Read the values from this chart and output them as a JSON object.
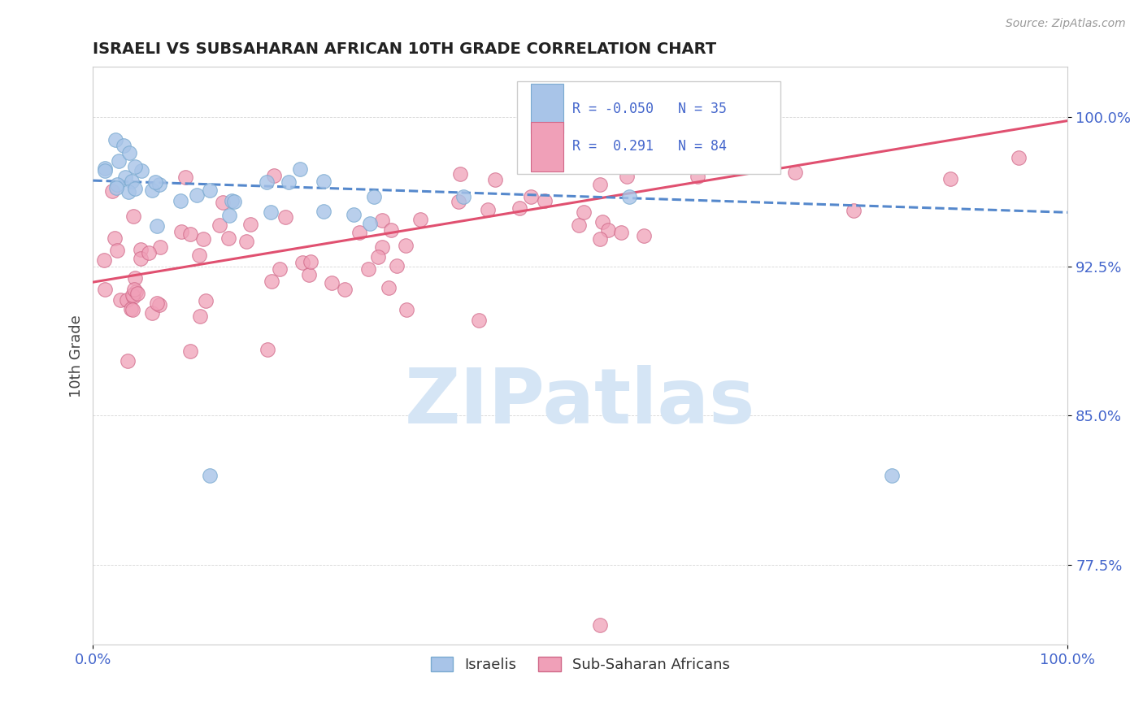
{
  "title": "ISRAELI VS SUBSAHARAN AFRICAN 10TH GRADE CORRELATION CHART",
  "source": "Source: ZipAtlas.com",
  "ylabel": "10th Grade",
  "ytick_labels": [
    "77.5%",
    "85.0%",
    "92.5%",
    "100.0%"
  ],
  "ytick_values": [
    0.775,
    0.85,
    0.925,
    1.0
  ],
  "xlim": [
    0.0,
    1.0
  ],
  "ylim": [
    0.735,
    1.025
  ],
  "color_israeli": "#a8c4e8",
  "color_israeli_edge": "#7aaad0",
  "color_subsaharan": "#f0a0b8",
  "color_subsaharan_edge": "#d06888",
  "color_trend_israeli": "#5588cc",
  "color_trend_subsaharan": "#e05070",
  "color_axis_labels": "#4466cc",
  "background_color": "#ffffff",
  "watermark_color": "#d5e5f5",
  "grid_color": "#cccccc",
  "isr_trend_start_y": 0.968,
  "isr_trend_end_y": 0.952,
  "sub_trend_start_y": 0.917,
  "sub_trend_end_y": 0.998
}
